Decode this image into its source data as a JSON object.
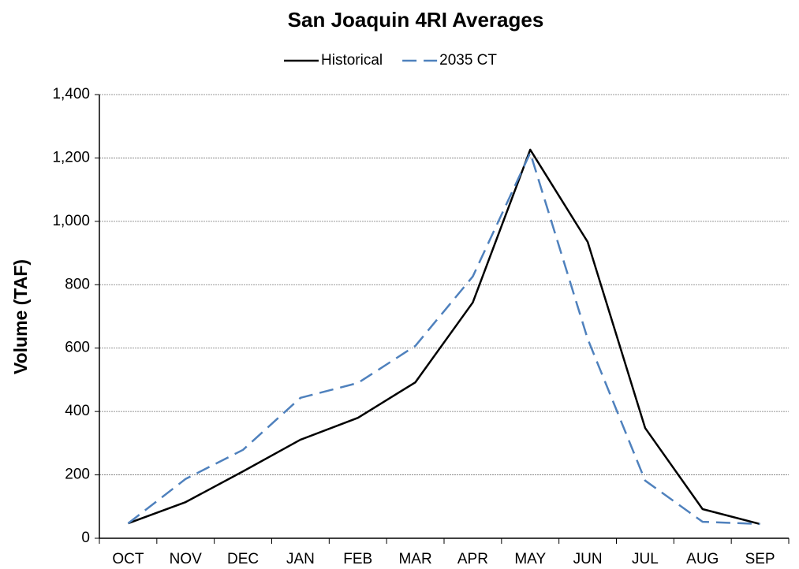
{
  "chart_data": {
    "type": "line",
    "title": "San Joaquin 4RI Averages",
    "y_label": "Volume (TAF)",
    "categories": [
      "OCT",
      "NOV",
      "DEC",
      "JAN",
      "FEB",
      "MAR",
      "APR",
      "MAY",
      "JUN",
      "JUL",
      "AUG",
      "SEP"
    ],
    "series": [
      {
        "name": "Historical",
        "color": "#000000",
        "dashed": false,
        "values": [
          47,
          114,
          211,
          311,
          380,
          492,
          744,
          1226,
          935,
          348,
          92,
          45
        ]
      },
      {
        "name": "2035 CT",
        "color": "#4f81bd",
        "dashed": true,
        "values": [
          47,
          187,
          279,
          443,
          490,
          607,
          826,
          1216,
          629,
          182,
          52,
          45
        ]
      }
    ],
    "ylim": [
      0,
      1400
    ],
    "yticks": [
      0,
      200,
      400,
      600,
      800,
      {
        "value": 1000,
        "label": "1,000"
      },
      {
        "value": 1200,
        "label": "1,200"
      },
      {
        "value": 1400,
        "label": "1,400"
      }
    ],
    "grid": true,
    "legend": "top"
  }
}
